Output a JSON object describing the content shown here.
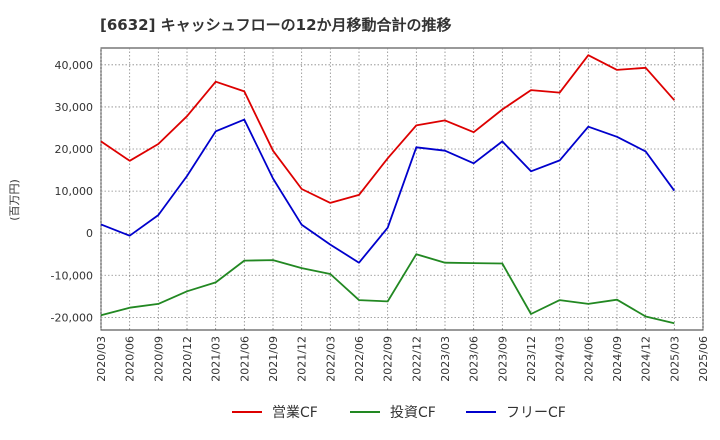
{
  "chart_data": {
    "type": "line",
    "title": "[6632]  キャッシュフローの12か月移動合計の推移",
    "ylabel": "(百万円)",
    "xlabel": "",
    "ylim": [
      -23000,
      44000
    ],
    "yticks": [
      40000,
      30000,
      20000,
      10000,
      0,
      -10000,
      -20000
    ],
    "ytick_labels": [
      "40,000",
      "30,000",
      "20,000",
      "10,000",
      "0",
      "-10,000",
      "-20,000"
    ],
    "categories": [
      "2020/03",
      "2020/06",
      "2020/09",
      "2020/12",
      "2021/03",
      "2021/06",
      "2021/09",
      "2021/12",
      "2022/03",
      "2022/06",
      "2022/09",
      "2022/12",
      "2023/03",
      "2023/06",
      "2023/09",
      "2023/12",
      "2024/03",
      "2024/06",
      "2024/09",
      "2024/12",
      "2025/03",
      "2025/06"
    ],
    "grid": true,
    "legend_position": "bottom",
    "series": [
      {
        "name": "営業CF",
        "color": "#dd0000",
        "values": [
          21800,
          17200,
          21200,
          27800,
          36000,
          33700,
          19600,
          10500,
          7200,
          9100,
          17800,
          25600,
          26800,
          24000,
          29400,
          34000,
          33400,
          42300,
          38800,
          39300,
          31600,
          null
        ]
      },
      {
        "name": "投資CF",
        "color": "#228822",
        "values": [
          -19500,
          -17700,
          -16800,
          -13800,
          -11700,
          -6500,
          -6400,
          -8300,
          -9700,
          -15900,
          -16200,
          -5000,
          -7000,
          -7100,
          -7200,
          -19200,
          -15900,
          -16800,
          -15800,
          -19800,
          -21400,
          null
        ]
      },
      {
        "name": "フリーCF",
        "color": "#0000cc",
        "values": [
          2100,
          -600,
          4300,
          13600,
          24200,
          27000,
          13000,
          2000,
          -2700,
          -7000,
          1300,
          20400,
          19600,
          16600,
          21800,
          14700,
          17300,
          25300,
          22900,
          19400,
          10100,
          null
        ]
      }
    ]
  }
}
